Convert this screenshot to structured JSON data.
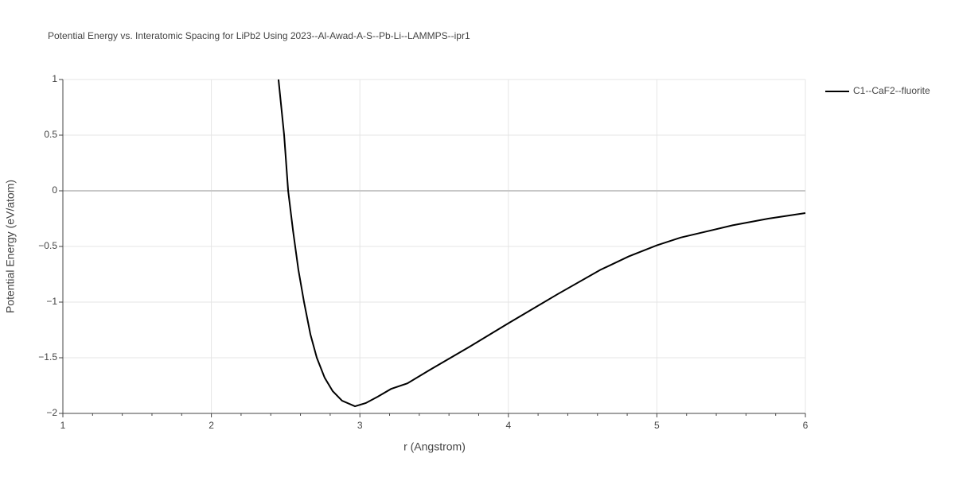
{
  "chart_data": {
    "type": "line",
    "title": "Potential Energy vs. Interatomic Spacing for LiPb2 Using 2023--Al-Awad-A-S--Pb-Li--LAMMPS--ipr1",
    "x_label": "r (Angstrom)",
    "y_label": "Potential Energy (eV/atom)",
    "x": [
      2.452,
      2.49,
      2.517,
      2.55,
      2.586,
      2.624,
      2.667,
      2.71,
      2.763,
      2.817,
      2.88,
      2.967,
      3.04,
      3.12,
      3.21,
      3.32,
      3.47,
      3.74,
      4.0,
      4.33,
      4.62,
      4.81,
      5.0,
      5.16,
      5.51,
      5.75,
      6.0
    ],
    "series": [
      {
        "name": "C1--CaF2--fluorite",
        "color": "#000000",
        "values": [
          1,
          0.5,
          0,
          -0.36,
          -0.71,
          -1.0,
          -1.29,
          -1.5,
          -1.68,
          -1.8,
          -1.886,
          -1.936,
          -1.907,
          -1.85,
          -1.78,
          -1.73,
          -1.61,
          -1.4,
          -1.19,
          -0.93,
          -0.71,
          -0.59,
          -0.49,
          -0.42,
          -0.31,
          -0.25,
          -0.2
        ]
      }
    ],
    "xlim": [
      1,
      6
    ],
    "xticks": [
      1,
      2,
      3,
      4,
      5,
      6
    ],
    "ylim": [
      -2,
      1
    ],
    "yticks": [
      {
        "value": -2,
        "label": "−2"
      },
      {
        "value": -1.5,
        "label": "−1.5"
      },
      {
        "value": -1,
        "label": "−1"
      },
      {
        "value": -0.5,
        "label": "−0.5"
      },
      0,
      0.5,
      1
    ],
    "grid": true,
    "legend": "right"
  }
}
